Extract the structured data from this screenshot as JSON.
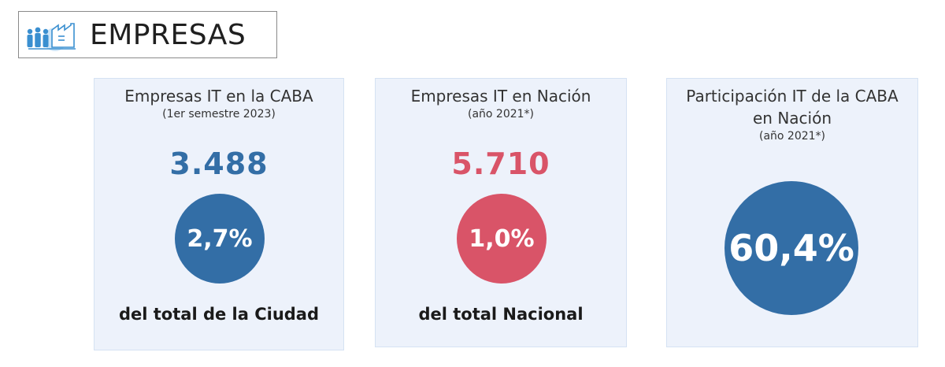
{
  "header": {
    "title": "EMPRESAS",
    "icon": "company-people-icon"
  },
  "colors": {
    "blue": "#336ea6",
    "red": "#d95468",
    "card_bg": "#edf2fb"
  },
  "cards": [
    {
      "title": "Empresas IT en la CABA",
      "subtitle": "(1er semestre 2023)",
      "value": "3.488",
      "percent": "2,7%",
      "footer": "del total de la Ciudad"
    },
    {
      "title": "Empresas IT en Nación",
      "subtitle": "(año 2021*)",
      "value": "5.710",
      "percent": "1,0%",
      "footer": "del total Nacional"
    },
    {
      "title_line1": "Participación IT de la CABA",
      "title_line2": "en Nación",
      "subtitle": "(año 2021*)",
      "percent": "60,4%"
    }
  ]
}
